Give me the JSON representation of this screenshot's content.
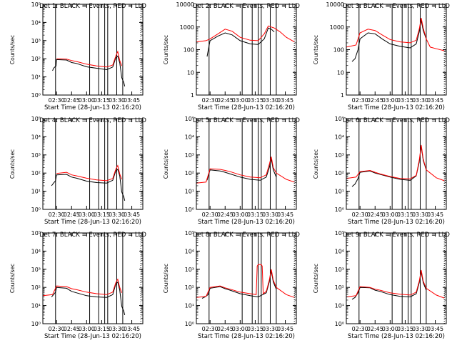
{
  "figure": {
    "xlabel": "Start Time (28-Jun-13 02:16:20)",
    "x_tick_labels": [
      "02:30",
      "02:45",
      "03:00",
      "03:15",
      "03:30",
      "03:45"
    ],
    "colors": {
      "events": "#000000",
      "lld": "#ff0000"
    }
  },
  "chart_data": [
    {
      "type": "line",
      "title": "Det 1: BLACK = Events, RED = LLD",
      "ylabel": "Counts/sec",
      "yscale": "log",
      "ylim": [
        1,
        100000
      ],
      "y_tick_labels": [
        "10⁰",
        "10¹",
        "10²",
        "10³",
        "10⁴",
        "10⁵"
      ],
      "xlim": [
        "02:16:20",
        "03:56:00"
      ],
      "x_tick_labels": [
        "02:30",
        "02:45",
        "03:00",
        "03:15",
        "03:30",
        "03:45"
      ],
      "xlabel": "Start Time (28-Jun-13 02:16:20)",
      "solid_vlines": [
        "02:29",
        "03:03",
        "03:12",
        "03:18",
        "03:21",
        "03:30",
        "03:36"
      ],
      "dotted_vlines": [
        "03:54"
      ],
      "series": [
        {
          "color": "#000000",
          "x": [
            "02:26",
            "02:27",
            "02:28",
            "02:29",
            "02:29:30",
            "02:30",
            "02:40",
            "02:45",
            "02:50",
            "03:00",
            "03:10",
            "03:20",
            "03:26",
            "03:29",
            "03:31",
            "03:33",
            "03:35",
            "03:37",
            "03:38"
          ],
          "y": [
            22,
            30,
            34,
            38,
            40,
            90,
            85,
            62,
            55,
            36,
            30,
            25,
            35,
            110,
            140,
            60,
            9,
            5,
            3
          ]
        },
        {
          "color": "#ff0000",
          "x": [
            "02:30",
            "02:40",
            "02:45",
            "02:50",
            "03:00",
            "03:10",
            "03:20",
            "03:26",
            "03:29",
            "03:31",
            "03:33",
            "03:35"
          ],
          "y": [
            100,
            95,
            80,
            70,
            50,
            40,
            35,
            45,
            140,
            250,
            80,
            40
          ]
        }
      ]
    },
    {
      "type": "line",
      "title": "Det 2: BLACK = Events, RED = LLD",
      "ylabel": "Counts/sec",
      "yscale": "log",
      "ylim": [
        1,
        10000
      ],
      "y_tick_labels": [
        "1",
        "10",
        "100",
        "1000",
        "10000"
      ],
      "xlim": [
        "02:16:20",
        "03:56:00"
      ],
      "x_tick_labels": [
        "02:30",
        "02:45",
        "03:00",
        "03:15",
        "03:30",
        "03:45"
      ],
      "xlabel": "Start Time (28-Jun-13 02:16:20)",
      "solid_vlines": [
        "02:29",
        "03:02",
        "03:12",
        "03:18",
        "03:21",
        "03:30",
        "03:36"
      ],
      "dotted_vlines": [
        "03:54"
      ],
      "series": [
        {
          "color": "#000000",
          "x": [
            "02:27",
            "02:29",
            "02:30",
            "02:38",
            "02:45",
            "02:52",
            "03:00",
            "03:10",
            "03:18",
            "03:24",
            "03:28",
            "03:31",
            "03:34"
          ],
          "y": [
            50,
            150,
            250,
            400,
            550,
            450,
            250,
            180,
            170,
            300,
            900,
            800,
            600
          ]
        },
        {
          "color": "#ff0000",
          "x": [
            "02:16:20",
            "02:26",
            "02:30",
            "02:38",
            "02:45",
            "02:52",
            "03:00",
            "03:10",
            "03:18",
            "03:24",
            "03:28",
            "03:31",
            "03:34",
            "03:40",
            "03:46",
            "03:54"
          ],
          "y": [
            220,
            250,
            300,
            500,
            800,
            650,
            350,
            260,
            250,
            500,
            1100,
            1000,
            900,
            600,
            350,
            220
          ]
        }
      ]
    },
    {
      "type": "line",
      "title": "Det 3: BLACK = Events, RED = LLD",
      "ylabel": "Counts/sec",
      "yscale": "log",
      "ylim": [
        1,
        10000
      ],
      "y_tick_labels": [
        "1",
        "10",
        "100",
        "1000",
        "10000"
      ],
      "xlim": [
        "02:16:20",
        "03:56:00"
      ],
      "x_tick_labels": [
        "02:30",
        "02:45",
        "03:00",
        "03:15",
        "03:30",
        "03:45"
      ],
      "xlabel": "Start Time (28-Jun-13 02:16:20)",
      "solid_vlines": [
        "02:29",
        "03:02",
        "03:12",
        "03:18",
        "03:21",
        "03:30",
        "03:36"
      ],
      "dotted_vlines": [
        "03:54"
      ],
      "series": [
        {
          "color": "#000000",
          "x": [
            "02:22",
            "02:25",
            "02:28",
            "02:30",
            "02:38",
            "02:45",
            "02:52",
            "03:00",
            "03:10",
            "03:20",
            "03:26",
            "03:29",
            "03:31",
            "03:33",
            "03:36"
          ],
          "y": [
            30,
            40,
            100,
            300,
            550,
            500,
            300,
            180,
            140,
            120,
            180,
            600,
            2000,
            700,
            300
          ]
        },
        {
          "color": "#ff0000",
          "x": [
            "02:16:20",
            "02:26",
            "02:30",
            "02:38",
            "02:45",
            "02:52",
            "03:00",
            "03:10",
            "03:20",
            "03:26",
            "03:29",
            "03:31",
            "03:33",
            "03:36",
            "03:40",
            "03:46",
            "03:54"
          ],
          "y": [
            130,
            160,
            550,
            800,
            700,
            450,
            280,
            220,
            200,
            260,
            800,
            2500,
            900,
            300,
            130,
            110,
            90
          ]
        }
      ]
    },
    {
      "type": "line",
      "title": "Det 4: BLACK = Events, RED = LLD",
      "ylabel": "Counts/sec",
      "yscale": "log",
      "ylim": [
        1,
        100000
      ],
      "y_tick_labels": [
        "10⁰",
        "10¹",
        "10²",
        "10³",
        "10⁴",
        "10⁵"
      ],
      "xlim": [
        "02:16:20",
        "03:56:00"
      ],
      "x_tick_labels": [
        "02:30",
        "02:45",
        "03:00",
        "03:15",
        "03:30",
        "03:45"
      ],
      "xlabel": "Start Time (28-Jun-13 02:16:20)",
      "solid_vlines": [
        "02:29",
        "03:03",
        "03:12",
        "03:18",
        "03:21",
        "03:30",
        "03:36"
      ],
      "dotted_vlines": [
        "03:54"
      ],
      "series": [
        {
          "color": "#000000",
          "x": [
            "02:25",
            "02:27",
            "02:29",
            "02:30",
            "02:40",
            "02:45",
            "02:50",
            "03:00",
            "03:10",
            "03:20",
            "03:26",
            "03:29",
            "03:31",
            "03:33",
            "03:35",
            "03:37",
            "03:38"
          ],
          "y": [
            20,
            28,
            38,
            80,
            85,
            60,
            52,
            36,
            30,
            28,
            40,
            130,
            160,
            70,
            9,
            5,
            3
          ]
        },
        {
          "color": "#ff0000",
          "x": [
            "02:30",
            "02:40",
            "02:45",
            "02:50",
            "03:00",
            "03:10",
            "03:20",
            "03:26",
            "03:29",
            "03:31",
            "03:33",
            "03:35"
          ],
          "y": [
            95,
            110,
            80,
            70,
            52,
            42,
            38,
            50,
            160,
            260,
            90,
            45
          ]
        }
      ]
    },
    {
      "type": "line",
      "title": "Det 5: BLACK = Events, RED = LLD",
      "ylabel": "Counts/sec",
      "yscale": "log",
      "ylim": [
        1,
        100000
      ],
      "y_tick_labels": [
        "10⁰",
        "10¹",
        "10²",
        "10³",
        "10⁴",
        "10⁵"
      ],
      "xlim": [
        "02:16:20",
        "03:56:00"
      ],
      "x_tick_labels": [
        "02:30",
        "02:45",
        "03:00",
        "03:15",
        "03:30",
        "03:45"
      ],
      "xlabel": "Start Time (28-Jun-13 02:16:20)",
      "solid_vlines": [
        "02:29",
        "03:02",
        "03:12",
        "03:18",
        "03:21",
        "03:30",
        "03:36"
      ],
      "dotted_vlines": [
        "03:54"
      ],
      "series": [
        {
          "color": "#000000",
          "x": [
            "02:27",
            "02:29",
            "02:30",
            "02:40",
            "02:45",
            "02:50",
            "03:00",
            "03:10",
            "03:20",
            "03:26",
            "03:29",
            "03:31",
            "03:33",
            "03:36"
          ],
          "y": [
            40,
            100,
            150,
            130,
            110,
            90,
            60,
            45,
            40,
            60,
            200,
            600,
            150,
            60
          ]
        },
        {
          "color": "#ff0000",
          "x": [
            "02:16:20",
            "02:26",
            "02:30",
            "02:40",
            "02:45",
            "02:50",
            "03:00",
            "03:10",
            "03:20",
            "03:26",
            "03:29",
            "03:31",
            "03:33",
            "03:36",
            "03:46",
            "03:54"
          ],
          "y": [
            28,
            32,
            170,
            160,
            140,
            120,
            80,
            60,
            55,
            80,
            300,
            800,
            200,
            100,
            45,
            32
          ]
        }
      ]
    },
    {
      "type": "line",
      "title": "Det 6: BLACK = Events, RED = LLD",
      "ylabel": "Counts/sec",
      "yscale": "log",
      "ylim": [
        1,
        100000
      ],
      "y_tick_labels": [
        "10⁰",
        "10¹",
        "10²",
        "10³",
        "10⁴",
        "10⁵"
      ],
      "xlim": [
        "02:16:20",
        "03:56:00"
      ],
      "x_tick_labels": [
        "02:30",
        "02:45",
        "03:00",
        "03:15",
        "03:30",
        "03:45"
      ],
      "xlabel": "Start Time (28-Jun-13 02:16:20)",
      "solid_vlines": [
        "02:29",
        "03:02",
        "03:12",
        "03:18",
        "03:21",
        "03:30",
        "03:36"
      ],
      "dotted_vlines": [
        "03:54"
      ],
      "series": [
        {
          "color": "#000000",
          "x": [
            "02:22",
            "02:25",
            "02:28",
            "02:30",
            "02:40",
            "02:45",
            "02:50",
            "03:00",
            "03:10",
            "03:20",
            "03:26",
            "03:29",
            "03:31",
            "03:33",
            "03:36"
          ],
          "y": [
            18,
            25,
            50,
            110,
            130,
            100,
            85,
            60,
            45,
            40,
            70,
            400,
            3000,
            500,
            150
          ]
        },
        {
          "color": "#ff0000",
          "x": [
            "02:16:20",
            "02:26",
            "02:30",
            "02:40",
            "02:45",
            "02:50",
            "03:00",
            "03:10",
            "03:20",
            "03:26",
            "03:29",
            "03:31",
            "03:33",
            "03:36",
            "03:46",
            "03:54"
          ],
          "y": [
            50,
            60,
            120,
            140,
            110,
            90,
            65,
            50,
            48,
            75,
            500,
            3500,
            600,
            150,
            55,
            38
          ]
        }
      ]
    },
    {
      "type": "line",
      "title": "Det 7: BLACK = Events, RED = LLD",
      "ylabel": "Counts/sec",
      "yscale": "log",
      "ylim": [
        1,
        100000
      ],
      "y_tick_labels": [
        "10⁰",
        "10¹",
        "10²",
        "10³",
        "10⁴",
        "10⁵"
      ],
      "xlim": [
        "02:16:20",
        "03:56:00"
      ],
      "x_tick_labels": [
        "02:30",
        "02:45",
        "03:00",
        "03:15",
        "03:30",
        "03:45"
      ],
      "xlabel": "Start Time (28-Jun-13 02:16:20)",
      "solid_vlines": [
        "02:29",
        "03:03",
        "03:12",
        "03:18",
        "03:21",
        "03:30",
        "03:36"
      ],
      "dotted_vlines": [
        "03:54"
      ],
      "series": [
        {
          "color": "#000000",
          "x": [
            "02:25",
            "02:27",
            "02:29",
            "02:30",
            "02:40",
            "02:45",
            "02:50",
            "03:00",
            "03:10",
            "03:20",
            "03:26",
            "03:29",
            "03:31",
            "03:33",
            "03:35",
            "03:37",
            "03:38"
          ],
          "y": [
            30,
            40,
            55,
            100,
            90,
            60,
            50,
            35,
            30,
            28,
            40,
            150,
            200,
            70,
            9,
            5,
            3
          ]
        },
        {
          "color": "#ff0000",
          "x": [
            "02:16:20",
            "02:26",
            "02:30",
            "02:40",
            "02:45",
            "02:50",
            "03:00",
            "03:10",
            "03:20",
            "03:26",
            "03:29",
            "03:31",
            "03:33",
            "03:35"
          ],
          "y": [
            35,
            40,
            120,
            110,
            85,
            75,
            55,
            45,
            40,
            55,
            180,
            280,
            100,
            50
          ]
        }
      ]
    },
    {
      "type": "line",
      "title": "Det 8: BLACK = Events, RED = LLD",
      "ylabel": "Counts/sec",
      "yscale": "log",
      "ylim": [
        1,
        100000
      ],
      "y_tick_labels": [
        "10⁰",
        "10¹",
        "10²",
        "10³",
        "10⁴",
        "10⁵"
      ],
      "xlim": [
        "02:16:20",
        "03:56:00"
      ],
      "x_tick_labels": [
        "02:30",
        "02:45",
        "03:00",
        "03:15",
        "03:30",
        "03:45"
      ],
      "xlabel": "Start Time (28-Jun-13 02:16:20)",
      "solid_vlines": [
        "02:29",
        "03:02",
        "03:12",
        "03:18",
        "03:21",
        "03:30",
        "03:36"
      ],
      "dotted_vlines": [
        "03:54"
      ],
      "series": [
        {
          "color": "#000000",
          "x": [
            "02:22",
            "02:25",
            "02:28",
            "02:30",
            "02:40",
            "02:45",
            "02:50",
            "03:00",
            "03:10",
            "03:18",
            "03:26",
            "03:29",
            "03:31",
            "03:33",
            "03:36"
          ],
          "y": [
            25,
            30,
            40,
            90,
            110,
            85,
            70,
            45,
            35,
            30,
            50,
            200,
            800,
            200,
            80
          ]
        },
        {
          "color": "#ff0000",
          "x": [
            "02:16:20",
            "02:26",
            "02:30",
            "02:40",
            "02:45",
            "02:50",
            "03:00",
            "03:10",
            "03:16",
            "03:17",
            "03:18",
            "03:21",
            "03:22",
            "03:23",
            "03:26",
            "03:29",
            "03:31",
            "03:33",
            "03:36",
            "03:46",
            "03:54"
          ],
          "y": [
            28,
            32,
            100,
            120,
            95,
            80,
            55,
            45,
            40,
            1500,
            1800,
            1800,
            1500,
            45,
            60,
            250,
            1000,
            250,
            100,
            40,
            28
          ]
        }
      ]
    },
    {
      "type": "line",
      "title": "Det 9: BLACK = Events, RED = LLD",
      "ylabel": "Counts/sec",
      "yscale": "log",
      "ylim": [
        1,
        100000
      ],
      "y_tick_labels": [
        "10⁰",
        "10¹",
        "10²",
        "10³",
        "10⁴",
        "10⁵"
      ],
      "xlim": [
        "02:16:20",
        "03:56:00"
      ],
      "x_tick_labels": [
        "02:30",
        "02:45",
        "03:00",
        "03:15",
        "03:30",
        "03:45"
      ],
      "xlabel": "Start Time (28-Jun-13 02:16:20)",
      "solid_vlines": [
        "02:29",
        "03:02",
        "03:12",
        "03:18",
        "03:21",
        "03:30",
        "03:36"
      ],
      "dotted_vlines": [
        "03:54"
      ],
      "series": [
        {
          "color": "#000000",
          "x": [
            "02:22",
            "02:25",
            "02:28",
            "02:30",
            "02:40",
            "02:45",
            "02:50",
            "03:00",
            "03:10",
            "03:20",
            "03:26",
            "03:29",
            "03:31",
            "03:33",
            "03:36"
          ],
          "y": [
            22,
            28,
            50,
            100,
            95,
            70,
            60,
            40,
            32,
            30,
            45,
            180,
            700,
            180,
            70
          ]
        },
        {
          "color": "#ff0000",
          "x": [
            "02:16:20",
            "02:26",
            "02:30",
            "02:40",
            "02:45",
            "02:50",
            "03:00",
            "03:10",
            "03:20",
            "03:26",
            "03:29",
            "03:31",
            "03:33",
            "03:36",
            "03:46",
            "03:54"
          ],
          "y": [
            30,
            35,
            110,
            100,
            80,
            70,
            50,
            42,
            38,
            55,
            220,
            900,
            220,
            90,
            38,
            26
          ]
        }
      ]
    }
  ]
}
